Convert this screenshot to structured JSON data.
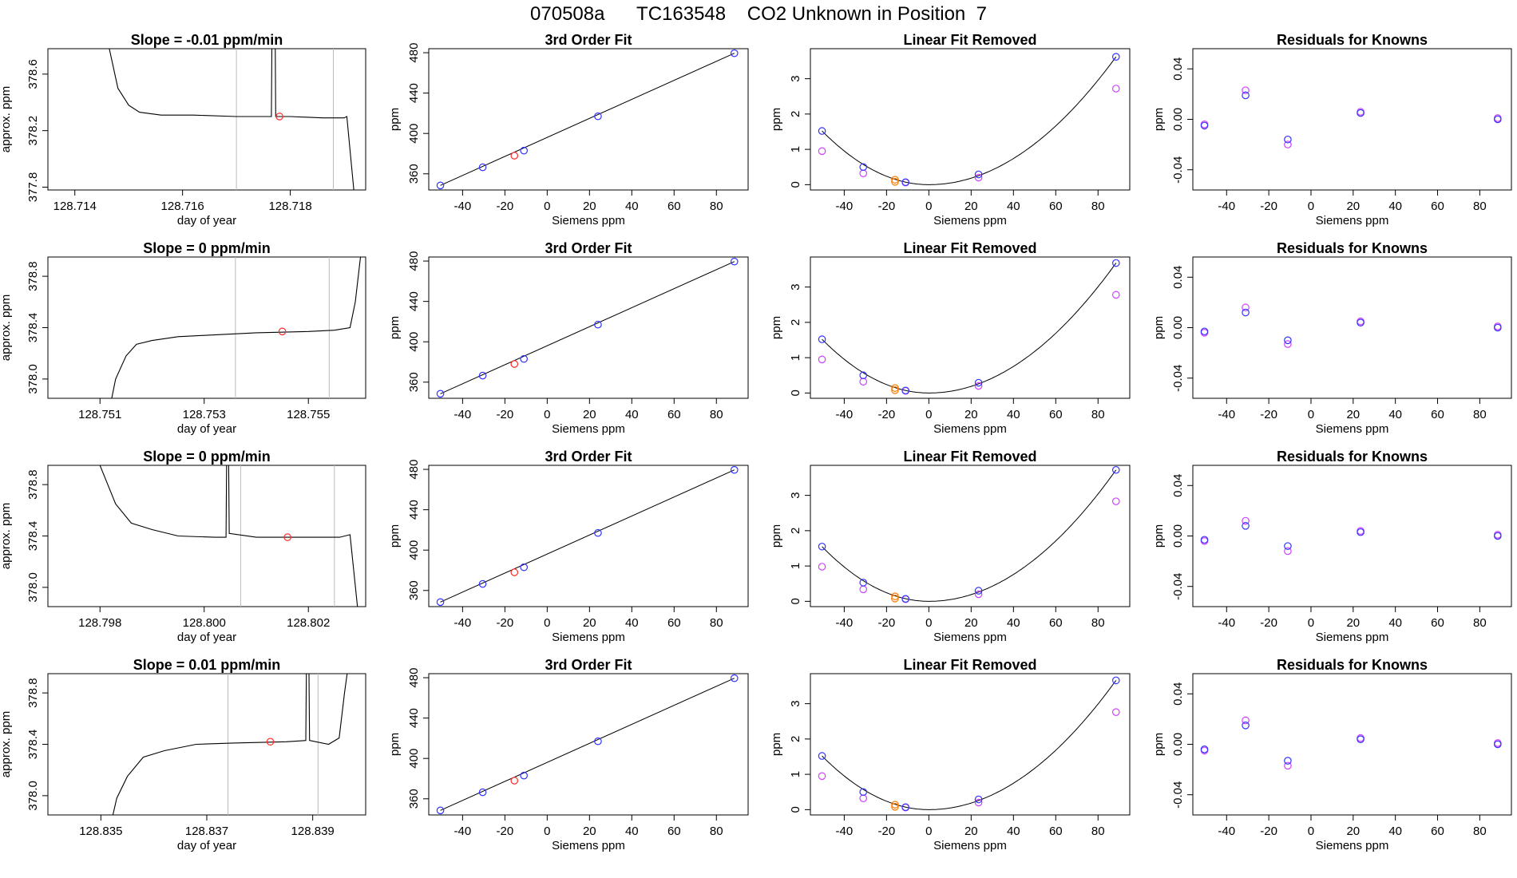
{
  "title": "070508a      TC163548    CO2 Unknown in Position  7",
  "colors": {
    "trace": "#000000",
    "marker_red": "#ff2a2a",
    "known_blue": "#3333ff",
    "magenta": "#d040ff",
    "orange": "#ff7a00",
    "ref_line": "#bbbbbb"
  },
  "chart_data": [
    {
      "type": "line",
      "row": 0,
      "col": 0,
      "title": "Slope =  -0.01  ppm/min",
      "xlabel": "day of year",
      "ylabel": "approx. ppm",
      "xlim": [
        128.7135,
        128.7194
      ],
      "ylim": [
        377.78,
        378.78
      ],
      "xticks": [
        128.714,
        128.716,
        128.718
      ],
      "xtick_labels": [
        "128.714",
        "128.716",
        "128.718"
      ],
      "yticks": [
        377.8,
        378.2,
        378.6
      ],
      "ytick_labels": [
        "377.8",
        "378.2",
        "378.6"
      ],
      "vlines": [
        128.717,
        128.7188
      ],
      "marker": {
        "x": 128.7178,
        "y": 378.3
      },
      "trace": [
        [
          128.7146,
          378.85
        ],
        [
          128.7148,
          378.5
        ],
        [
          128.715,
          378.38
        ],
        [
          128.7152,
          378.33
        ],
        [
          128.7156,
          378.31
        ],
        [
          128.7162,
          378.31
        ],
        [
          128.717,
          378.3
        ],
        [
          128.7175,
          378.3
        ],
        [
          128.71765,
          378.3
        ],
        [
          128.71766,
          378.85
        ],
        [
          128.71772,
          378.85
        ],
        [
          128.71773,
          378.3
        ],
        [
          128.718,
          378.3
        ],
        [
          128.7186,
          378.29
        ],
        [
          128.719,
          378.29
        ],
        [
          128.71905,
          378.3
        ],
        [
          128.7192,
          377.7
        ]
      ]
    },
    {
      "type": "line",
      "row": 1,
      "col": 0,
      "title": "Slope =  0  ppm/min",
      "xlabel": "day of year",
      "ylabel": "approx. ppm",
      "xlim": [
        128.75,
        128.7561
      ],
      "ylim": [
        377.85,
        378.95
      ],
      "xticks": [
        128.751,
        128.753,
        128.755
      ],
      "xtick_labels": [
        "128.751",
        "128.753",
        "128.755"
      ],
      "yticks": [
        378.0,
        378.4,
        378.8
      ],
      "ytick_labels": [
        "378.0",
        "378.4",
        "378.8"
      ],
      "vlines": [
        128.7536,
        128.7554
      ],
      "marker": {
        "x": 128.7545,
        "y": 378.37
      },
      "trace": [
        [
          128.7512,
          377.8
        ],
        [
          128.7513,
          378.0
        ],
        [
          128.7515,
          378.18
        ],
        [
          128.7517,
          378.27
        ],
        [
          128.752,
          378.3
        ],
        [
          128.7525,
          378.33
        ],
        [
          128.753,
          378.34
        ],
        [
          128.754,
          378.36
        ],
        [
          128.755,
          378.37
        ],
        [
          128.7555,
          378.38
        ],
        [
          128.7558,
          378.4
        ],
        [
          128.7559,
          378.6
        ],
        [
          128.756,
          378.95
        ]
      ]
    },
    {
      "type": "line",
      "row": 2,
      "col": 0,
      "title": "Slope =  0  ppm/min",
      "xlabel": "day of year",
      "ylabel": "approx. ppm",
      "xlim": [
        128.797,
        128.8031
      ],
      "ylim": [
        377.85,
        378.95
      ],
      "xticks": [
        128.798,
        128.8,
        128.802
      ],
      "xtick_labels": [
        "128.798",
        "128.800",
        "128.802"
      ],
      "yticks": [
        378.0,
        378.4,
        378.8
      ],
      "ytick_labels": [
        "378.0",
        "378.4",
        "378.8"
      ],
      "vlines": [
        128.8007,
        128.8025
      ],
      "marker": {
        "x": 128.8016,
        "y": 378.39
      },
      "trace": [
        [
          128.798,
          378.95
        ],
        [
          128.7983,
          378.65
        ],
        [
          128.7986,
          378.5
        ],
        [
          128.799,
          378.45
        ],
        [
          128.7995,
          378.4
        ],
        [
          128.8002,
          378.39
        ],
        [
          128.80042,
          378.39
        ],
        [
          128.80043,
          378.95
        ],
        [
          128.80047,
          378.95
        ],
        [
          128.80048,
          378.42
        ],
        [
          128.801,
          378.39
        ],
        [
          128.802,
          378.39
        ],
        [
          128.8026,
          378.39
        ],
        [
          128.8028,
          378.41
        ],
        [
          128.80295,
          377.82
        ]
      ]
    },
    {
      "type": "line",
      "row": 3,
      "col": 0,
      "title": "Slope =  0.01  ppm/min",
      "xlabel": "day of year",
      "ylabel": "approx. ppm",
      "xlim": [
        128.834,
        128.84
      ],
      "ylim": [
        377.85,
        378.95
      ],
      "xticks": [
        128.835,
        128.837,
        128.839
      ],
      "xtick_labels": [
        "128.835",
        "128.837",
        "128.839"
      ],
      "yticks": [
        378.0,
        378.4,
        378.8
      ],
      "ytick_labels": [
        "378.0",
        "378.4",
        "378.8"
      ],
      "vlines": [
        128.8374,
        128.8391
      ],
      "marker": {
        "x": 128.8382,
        "y": 378.42
      },
      "trace": [
        [
          128.8352,
          377.8
        ],
        [
          128.8353,
          377.98
        ],
        [
          128.8355,
          378.15
        ],
        [
          128.8358,
          378.3
        ],
        [
          128.8362,
          378.35
        ],
        [
          128.8368,
          378.4
        ],
        [
          128.8375,
          378.41
        ],
        [
          128.8385,
          378.42
        ],
        [
          128.83887,
          378.43
        ],
        [
          128.83888,
          378.95
        ],
        [
          128.83893,
          378.95
        ],
        [
          128.83894,
          378.43
        ],
        [
          128.8393,
          378.4
        ],
        [
          128.8395,
          378.45
        ],
        [
          128.8396,
          378.8
        ],
        [
          128.83965,
          378.95
        ]
      ]
    },
    {
      "type": "scatter",
      "panel": "3rd Order Fit",
      "col": 1,
      "rows": [
        0,
        1,
        2,
        3
      ],
      "title": "3rd Order Fit",
      "xlabel": "Siemens ppm",
      "ylabel": "ppm",
      "xlim": [
        -56,
        95
      ],
      "ylim": [
        344,
        484
      ],
      "xticks": [
        -40,
        -20,
        0,
        20,
        40,
        60,
        80
      ],
      "yticks": [
        360,
        400,
        440,
        480
      ],
      "fit_line": [
        [
          -50.5,
          348.5
        ],
        [
          88.5,
          479.5
        ]
      ],
      "knowns": [
        [
          -50.5,
          348.5
        ],
        [
          -30.5,
          366.5
        ],
        [
          -11,
          383
        ],
        [
          24,
          417
        ],
        [
          88.5,
          479.5
        ]
      ],
      "unknown": [
        -15.5,
        378
      ]
    },
    {
      "type": "scatter",
      "panel": "Linear Fit Removed",
      "col": 2,
      "rows": [
        0,
        1,
        2,
        3
      ],
      "title": "Linear Fit Removed",
      "xlabel": "Siemens ppm",
      "ylabel": "ppm",
      "xlim": [
        -56,
        95
      ],
      "ylim": [
        -0.15,
        3.85
      ],
      "xticks": [
        -40,
        -20,
        0,
        20,
        40,
        60,
        80
      ],
      "yticks": [
        0,
        1,
        2,
        3
      ],
      "knowns_by_row": [
        [
          [
            -50.5,
            1.52
          ],
          [
            -31,
            0.5
          ],
          [
            -11,
            0.07
          ],
          [
            23.5,
            0.29
          ],
          [
            88.5,
            3.62
          ]
        ],
        [
          [
            -50.5,
            1.52
          ],
          [
            -31,
            0.5
          ],
          [
            -11,
            0.07
          ],
          [
            23.5,
            0.29
          ],
          [
            88.5,
            3.68
          ]
        ],
        [
          [
            -50.5,
            1.55
          ],
          [
            -31,
            0.53
          ],
          [
            -11,
            0.07
          ],
          [
            23.5,
            0.3
          ],
          [
            88.5,
            3.72
          ]
        ],
        [
          [
            -50.5,
            1.52
          ],
          [
            -31,
            0.5
          ],
          [
            -11,
            0.07
          ],
          [
            23.5,
            0.29
          ],
          [
            88.5,
            3.66
          ]
        ]
      ],
      "alt_by_row": [
        [
          [
            -50.5,
            0.95
          ],
          [
            -31,
            0.32
          ],
          [
            -11,
            0.06
          ],
          [
            23.5,
            0.2
          ],
          [
            88.5,
            2.72
          ]
        ],
        [
          [
            -50.5,
            0.95
          ],
          [
            -31,
            0.32
          ],
          [
            -11,
            0.06
          ],
          [
            23.5,
            0.2
          ],
          [
            88.5,
            2.78
          ]
        ],
        [
          [
            -50.5,
            0.98
          ],
          [
            -31,
            0.34
          ],
          [
            -11,
            0.06
          ],
          [
            23.5,
            0.2
          ],
          [
            88.5,
            2.83
          ]
        ],
        [
          [
            -50.5,
            0.95
          ],
          [
            -31,
            0.32
          ],
          [
            -11,
            0.06
          ],
          [
            23.5,
            0.2
          ],
          [
            88.5,
            2.76
          ]
        ]
      ],
      "unknown": [
        [
          -16,
          0.14
        ],
        [
          -16,
          0.08
        ]
      ]
    },
    {
      "type": "scatter",
      "panel": "Residuals for Knowns",
      "col": 3,
      "rows": [
        0,
        1,
        2,
        3
      ],
      "title": "Residuals for Knowns",
      "xlabel": "Siemens ppm",
      "ylabel": "ppm",
      "xlim": [
        -56,
        95
      ],
      "ylim": [
        -0.056,
        0.056
      ],
      "xticks": [
        -40,
        -20,
        0,
        20,
        40,
        60,
        80
      ],
      "yticks": [
        -0.04,
        0.0,
        0.04
      ],
      "ytick_labels": [
        "-0.04",
        "0.00",
        "0.04"
      ],
      "knowns_by_row": [
        [
          [
            -50.5,
            -0.005
          ],
          [
            -31,
            0.019
          ],
          [
            -11,
            -0.016
          ],
          [
            23.5,
            0.005
          ],
          [
            88.5,
            0.0
          ]
        ],
        [
          [
            -50.5,
            -0.003
          ],
          [
            -31,
            0.012
          ],
          [
            -11,
            -0.01
          ],
          [
            23.5,
            0.004
          ],
          [
            88.5,
            0.0
          ]
        ],
        [
          [
            -50.5,
            -0.003
          ],
          [
            -31,
            0.008
          ],
          [
            -11,
            -0.008
          ],
          [
            23.5,
            0.003
          ],
          [
            88.5,
            0.0
          ]
        ],
        [
          [
            -50.5,
            -0.004
          ],
          [
            -31,
            0.015
          ],
          [
            -11,
            -0.013
          ],
          [
            23.5,
            0.004
          ],
          [
            88.5,
            0.0
          ]
        ]
      ],
      "alt_by_row": [
        [
          [
            -50.5,
            -0.004
          ],
          [
            -31,
            0.023
          ],
          [
            -11,
            -0.02
          ],
          [
            23.5,
            0.006
          ],
          [
            88.5,
            0.001
          ]
        ],
        [
          [
            -50.5,
            -0.004
          ],
          [
            -31,
            0.016
          ],
          [
            -11,
            -0.013
          ],
          [
            23.5,
            0.005
          ],
          [
            88.5,
            0.001
          ]
        ],
        [
          [
            -50.5,
            -0.004
          ],
          [
            -31,
            0.012
          ],
          [
            -11,
            -0.012
          ],
          [
            23.5,
            0.004
          ],
          [
            88.5,
            0.001
          ]
        ],
        [
          [
            -50.5,
            -0.005
          ],
          [
            -31,
            0.019
          ],
          [
            -11,
            -0.017
          ],
          [
            23.5,
            0.005
          ],
          [
            88.5,
            0.001
          ]
        ]
      ]
    }
  ]
}
